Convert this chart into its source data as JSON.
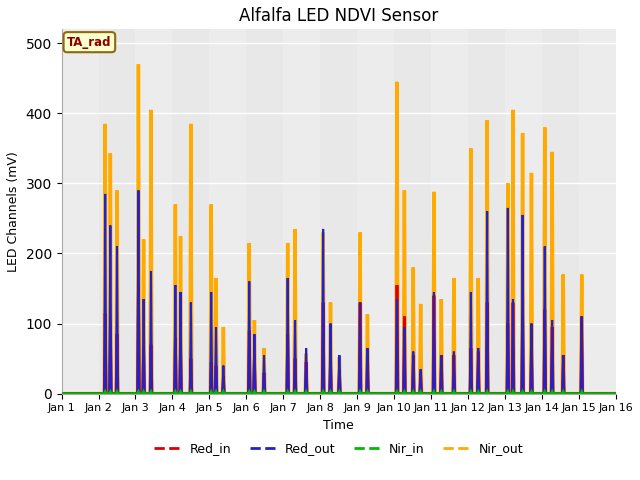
{
  "title": "Alfalfa LED NDVI Sensor",
  "xlabel": "Time",
  "ylabel": "LED Channels (mV)",
  "annotation": "TA_rad",
  "ylim": [
    0,
    520
  ],
  "xlim": [
    0,
    15
  ],
  "xtick_labels": [
    "Jan 1",
    "Jan 2",
    "Jan 3",
    "Jan 4",
    "Jan 5",
    "Jan 6",
    "Jan 7",
    "Jan 8",
    "Jan 9",
    "Jan 10",
    "Jan 11",
    "Jan 12",
    "Jan 13",
    "Jan 14",
    "Jan 15",
    "Jan 16"
  ],
  "xtick_positions": [
    0,
    1,
    2,
    3,
    4,
    5,
    6,
    7,
    8,
    9,
    10,
    11,
    12,
    13,
    14,
    15
  ],
  "colors": {
    "Red_in": "#dd0000",
    "Red_out": "#2222cc",
    "Nir_in": "#00bb00",
    "Nir_out": "#ffaa00"
  },
  "bg_color": "#e8e8e8",
  "bg_band_color": "#d8d8d8",
  "spikes": [
    {
      "day": 1.18,
      "red_in": 115,
      "red_out": 285,
      "nir_in": 3,
      "nir_out": 385
    },
    {
      "day": 1.32,
      "red_in": 95,
      "red_out": 240,
      "nir_in": 3,
      "nir_out": 343
    },
    {
      "day": 1.5,
      "red_in": 85,
      "red_out": 210,
      "nir_in": 3,
      "nir_out": 290
    },
    {
      "day": 2.08,
      "red_in": 155,
      "red_out": 290,
      "nir_in": 3,
      "nir_out": 470
    },
    {
      "day": 2.22,
      "red_in": 65,
      "red_out": 135,
      "nir_in": 3,
      "nir_out": 220
    },
    {
      "day": 2.42,
      "red_in": 70,
      "red_out": 175,
      "nir_in": 3,
      "nir_out": 405
    },
    {
      "day": 3.08,
      "red_in": 80,
      "red_out": 155,
      "nir_in": 3,
      "nir_out": 270
    },
    {
      "day": 3.22,
      "red_in": 65,
      "red_out": 145,
      "nir_in": 3,
      "nir_out": 225
    },
    {
      "day": 3.5,
      "red_in": 50,
      "red_out": 130,
      "nir_in": 3,
      "nir_out": 385
    },
    {
      "day": 4.05,
      "red_in": 45,
      "red_out": 145,
      "nir_in": 3,
      "nir_out": 270
    },
    {
      "day": 4.18,
      "red_in": 40,
      "red_out": 95,
      "nir_in": 3,
      "nir_out": 165
    },
    {
      "day": 4.38,
      "red_in": 25,
      "red_out": 40,
      "nir_in": 3,
      "nir_out": 95
    },
    {
      "day": 5.08,
      "red_in": 90,
      "red_out": 160,
      "nir_in": 3,
      "nir_out": 215
    },
    {
      "day": 5.22,
      "red_in": 55,
      "red_out": 85,
      "nir_in": 3,
      "nir_out": 105
    },
    {
      "day": 5.48,
      "red_in": 30,
      "red_out": 55,
      "nir_in": 3,
      "nir_out": 65
    },
    {
      "day": 6.12,
      "red_in": 85,
      "red_out": 165,
      "nir_in": 3,
      "nir_out": 215
    },
    {
      "day": 6.32,
      "red_in": 50,
      "red_out": 105,
      "nir_in": 3,
      "nir_out": 235
    },
    {
      "day": 6.62,
      "red_in": 45,
      "red_out": 65,
      "nir_in": 3,
      "nir_out": 57
    },
    {
      "day": 7.08,
      "red_in": 130,
      "red_out": 235,
      "nir_in": 3,
      "nir_out": 230
    },
    {
      "day": 7.28,
      "red_in": 45,
      "red_out": 100,
      "nir_in": 3,
      "nir_out": 130
    },
    {
      "day": 7.52,
      "red_in": 35,
      "red_out": 55,
      "nir_in": 3,
      "nir_out": 52
    },
    {
      "day": 8.08,
      "red_in": 130,
      "red_out": 130,
      "nir_in": 3,
      "nir_out": 230
    },
    {
      "day": 8.28,
      "red_in": 60,
      "red_out": 65,
      "nir_in": 3,
      "nir_out": 113
    },
    {
      "day": 9.08,
      "red_in": 155,
      "red_out": 135,
      "nir_in": 3,
      "nir_out": 445
    },
    {
      "day": 9.28,
      "red_in": 110,
      "red_out": 95,
      "nir_in": 3,
      "nir_out": 290
    },
    {
      "day": 9.52,
      "red_in": 55,
      "red_out": 60,
      "nir_in": 3,
      "nir_out": 180
    },
    {
      "day": 9.72,
      "red_in": 30,
      "red_out": 35,
      "nir_in": 3,
      "nir_out": 128
    },
    {
      "day": 10.08,
      "red_in": 140,
      "red_out": 145,
      "nir_in": 3,
      "nir_out": 288
    },
    {
      "day": 10.28,
      "red_in": 55,
      "red_out": 55,
      "nir_in": 3,
      "nir_out": 135
    },
    {
      "day": 10.62,
      "red_in": 55,
      "red_out": 60,
      "nir_in": 3,
      "nir_out": 165
    },
    {
      "day": 11.08,
      "red_in": 65,
      "red_out": 145,
      "nir_in": 3,
      "nir_out": 350
    },
    {
      "day": 11.28,
      "red_in": 60,
      "red_out": 65,
      "nir_in": 3,
      "nir_out": 165
    },
    {
      "day": 11.52,
      "red_in": 130,
      "red_out": 260,
      "nir_in": 3,
      "nir_out": 390
    },
    {
      "day": 12.08,
      "red_in": 100,
      "red_out": 265,
      "nir_in": 3,
      "nir_out": 300
    },
    {
      "day": 12.22,
      "red_in": 130,
      "red_out": 135,
      "nir_in": 3,
      "nir_out": 405
    },
    {
      "day": 12.48,
      "red_in": 110,
      "red_out": 255,
      "nir_in": 3,
      "nir_out": 372
    },
    {
      "day": 12.72,
      "red_in": 75,
      "red_out": 100,
      "nir_in": 3,
      "nir_out": 315
    },
    {
      "day": 13.08,
      "red_in": 120,
      "red_out": 210,
      "nir_in": 3,
      "nir_out": 380
    },
    {
      "day": 13.28,
      "red_in": 95,
      "red_out": 105,
      "nir_in": 3,
      "nir_out": 345
    },
    {
      "day": 13.58,
      "red_in": 55,
      "red_out": 55,
      "nir_in": 3,
      "nir_out": 170
    },
    {
      "day": 14.08,
      "red_in": 110,
      "red_out": 110,
      "nir_in": 3,
      "nir_out": 170
    }
  ]
}
